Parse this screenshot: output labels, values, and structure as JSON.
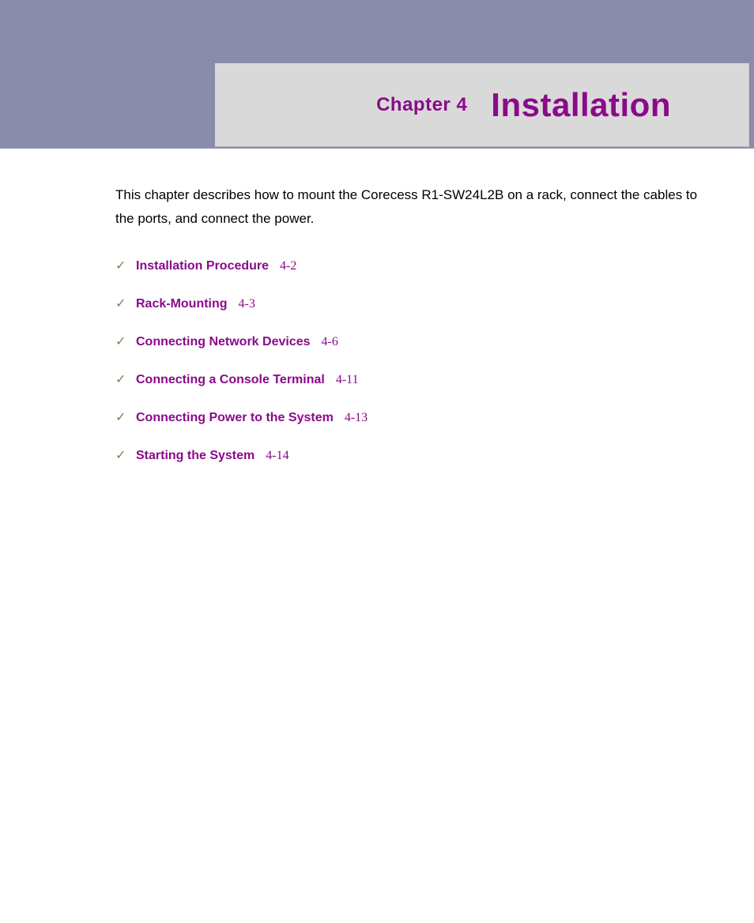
{
  "colors": {
    "header_band": "#8a8cac",
    "title_box_bg": "#d9d9d9",
    "accent": "#8a0a8a",
    "check": "#6a8a4a",
    "body_text": "#000000",
    "page_bg": "#ffffff"
  },
  "header": {
    "chapter_label": "Chapter 4",
    "chapter_title": "Installation",
    "label_fontsize": 24,
    "title_fontsize": 42
  },
  "intro": {
    "text": "This chapter describes how to mount the Corecess R1-SW24L2B on a rack, connect the cables to the ports, and connect the power.",
    "fontsize": 17,
    "line_height": 1.75
  },
  "toc": {
    "check_glyph": "✓",
    "label_fontsize": 16,
    "page_fontsize": 16,
    "items": [
      {
        "label": "Installation Procedure",
        "page": "4-2"
      },
      {
        "label": "Rack-Mounting",
        "page": "4-3"
      },
      {
        "label": "Connecting Network Devices",
        "page": "4-6"
      },
      {
        "label": "Connecting a Console Terminal",
        "page": "4-11"
      },
      {
        "label": "Connecting Power to the System",
        "page": "4-13"
      },
      {
        "label": "Starting the System",
        "page": "4-14"
      }
    ]
  }
}
